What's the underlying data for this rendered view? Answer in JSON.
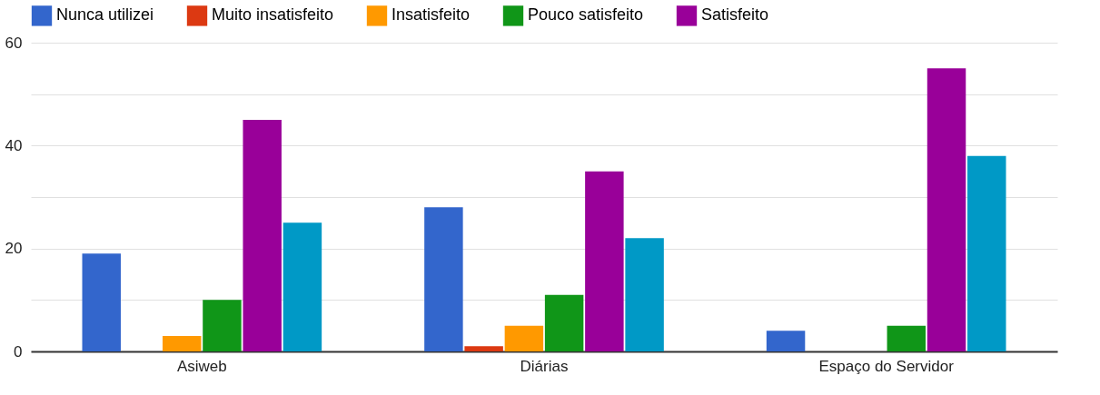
{
  "chart_data": {
    "type": "bar",
    "categories": [
      "Asiweb",
      "Diárias",
      "Espaço do Servidor"
    ],
    "series": [
      {
        "name": "Nunca utilizei",
        "color": "#3366cc",
        "values": [
          19,
          28,
          4
        ]
      },
      {
        "name": "Muito insatisfeito",
        "color": "#dc3912",
        "values": [
          0,
          1,
          0
        ]
      },
      {
        "name": "Insatisfeito",
        "color": "#ff9900",
        "values": [
          3,
          5,
          0
        ]
      },
      {
        "name": "Pouco satisfeito",
        "color": "#109618",
        "values": [
          10,
          11,
          5
        ]
      },
      {
        "name": "Satisfeito",
        "color": "#990099",
        "values": [
          45,
          35,
          55
        ]
      },
      {
        "color": "#0099c6",
        "values": [
          25,
          22,
          38
        ]
      }
    ],
    "ylim": [
      0,
      60
    ],
    "yticks": [
      0,
      {
        "value": 10,
        "label": null
      },
      20,
      {
        "value": 30,
        "label": null
      },
      40,
      {
        "value": 50,
        "label": null
      },
      60
    ],
    "grid": "y",
    "legend": "top"
  }
}
